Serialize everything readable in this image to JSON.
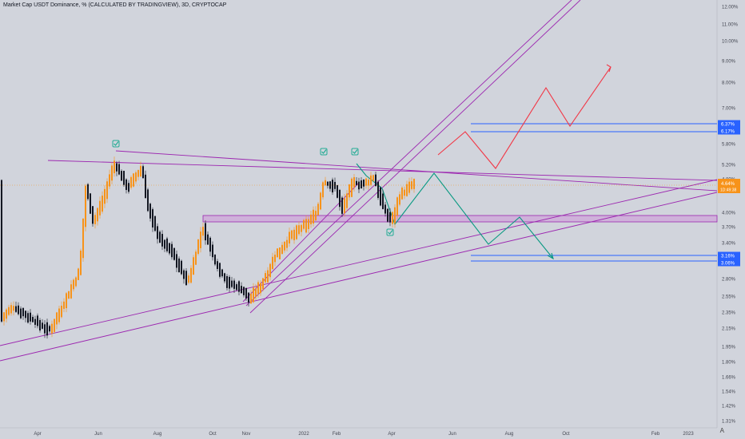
{
  "chart_data": {
    "type": "candlestick",
    "title": "Market Cap USDT Dominance, % (CALCULATED BY TRADINGVIEW), 3D, CRYPTOCAP",
    "y_tick_labels": [
      "12.00%",
      "11.00%",
      "10.00%",
      "9.00%",
      "8.00%",
      "7.00%",
      "5.80%",
      "5.20%",
      "4.80%",
      "4.00%",
      "3.70%",
      "3.40%",
      "2.80%",
      "2.55%",
      "2.35%",
      "2.15%",
      "1.95%",
      "1.80%",
      "1.66%",
      "1.54%",
      "1.42%",
      "1.31%"
    ],
    "x_tick_labels": [
      "Apr",
      "Jun",
      "Aug",
      "Oct",
      "Nov",
      "2022",
      "Feb",
      "Apr",
      "Jun",
      "Aug",
      "Oct",
      "Feb",
      "2023"
    ],
    "price_label": {
      "value": "4.64%",
      "countdown": "1D:49:38",
      "color": "#f7931a"
    },
    "level_labels": [
      {
        "text": "6.37%",
        "color": "#2962ff"
      },
      {
        "text": "6.17%",
        "color": "#2962ff"
      },
      {
        "text": "3.16%",
        "color": "#2962ff"
      },
      {
        "text": "3.06%",
        "color": "#2962ff"
      }
    ],
    "corner_label": "A",
    "colors": {
      "up_candle": "#f7931a",
      "down_candle": "#131722",
      "trendline": "#9c27b0",
      "bullish_path": "#f23645",
      "bearish_path": "#089981",
      "level": "#2962ff",
      "zone": "#ce93d8",
      "background": "#d1d4dc"
    }
  }
}
